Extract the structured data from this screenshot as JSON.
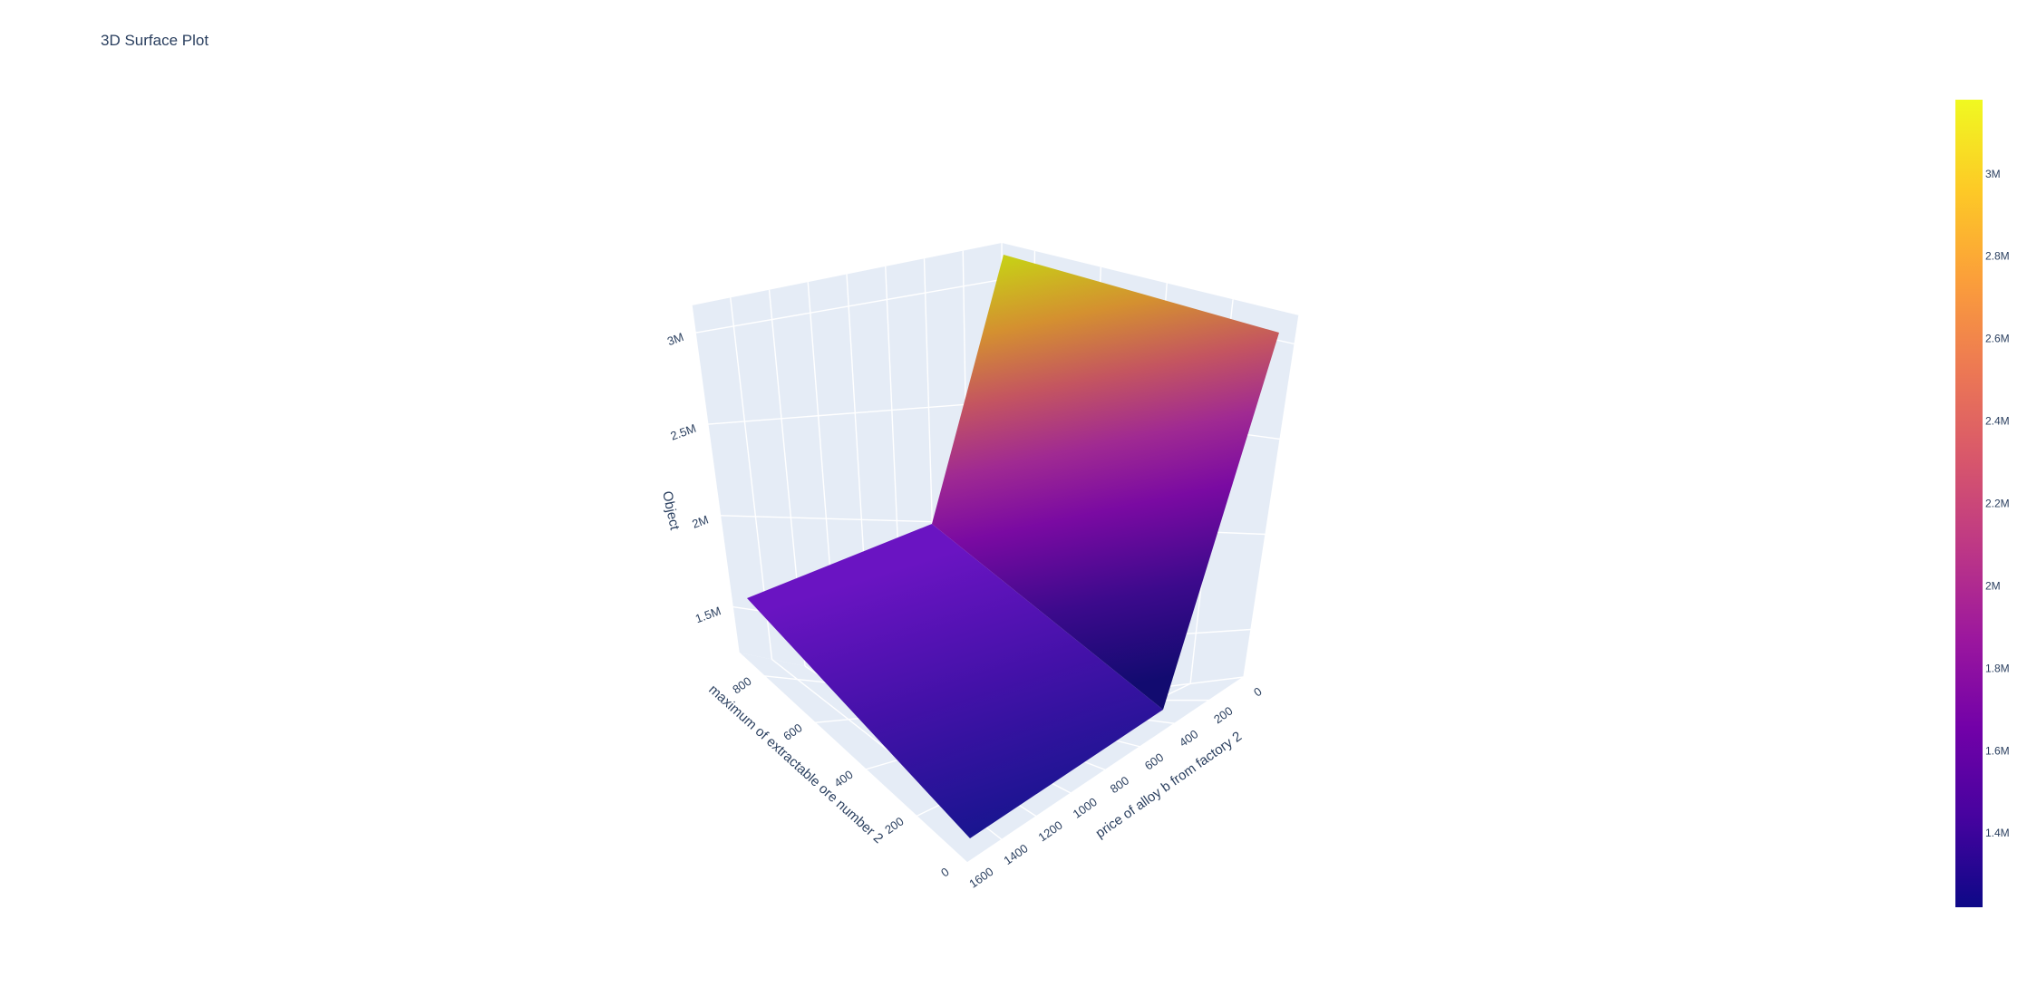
{
  "chart_data": {
    "type": "surface",
    "title": "3D Surface Plot",
    "xlabel": "price of alloy b from factory 2",
    "ylabel": "maximum of extractable ore number 2",
    "zlabel": "Object",
    "x_ticks": [
      "0",
      "200",
      "400",
      "600",
      "800",
      "1000",
      "1200",
      "1400",
      "1600"
    ],
    "y_ticks": [
      "0",
      "200",
      "400",
      "600",
      "800"
    ],
    "z_ticks": [
      "1.5M",
      "2M",
      "2.5M",
      "3M"
    ],
    "colorbar_ticks": [
      "1.4M",
      "1.6M",
      "1.8M",
      "2M",
      "2.2M",
      "2.4M",
      "2.6M",
      "2.8M",
      "3M"
    ],
    "x_range": [
      0,
      1600
    ],
    "y_range": [
      0,
      900
    ],
    "z_range": [
      1250000,
      3150000
    ],
    "colorscale": [
      "#0d0887",
      "#46039f",
      "#7201a8",
      "#9c179e",
      "#bd3786",
      "#d8576b",
      "#ed7953",
      "#fb9f3a",
      "#fdca26",
      "#f0f921"
    ],
    "color_range": [
      1220000,
      3180000
    ],
    "surface_points": [
      {
        "x": 1600,
        "y": 0,
        "z": 1230000
      },
      {
        "x": 0,
        "y": 0,
        "z": 1230000
      },
      {
        "x": 0,
        "y": 900,
        "z": 3060000
      },
      {
        "x": 1600,
        "y": 900,
        "z": 1530000
      },
      {
        "x": 0,
        "y": 900,
        "z": 3090000
      },
      {
        "x": 1600,
        "y": 900,
        "z": 3100000
      }
    ]
  }
}
